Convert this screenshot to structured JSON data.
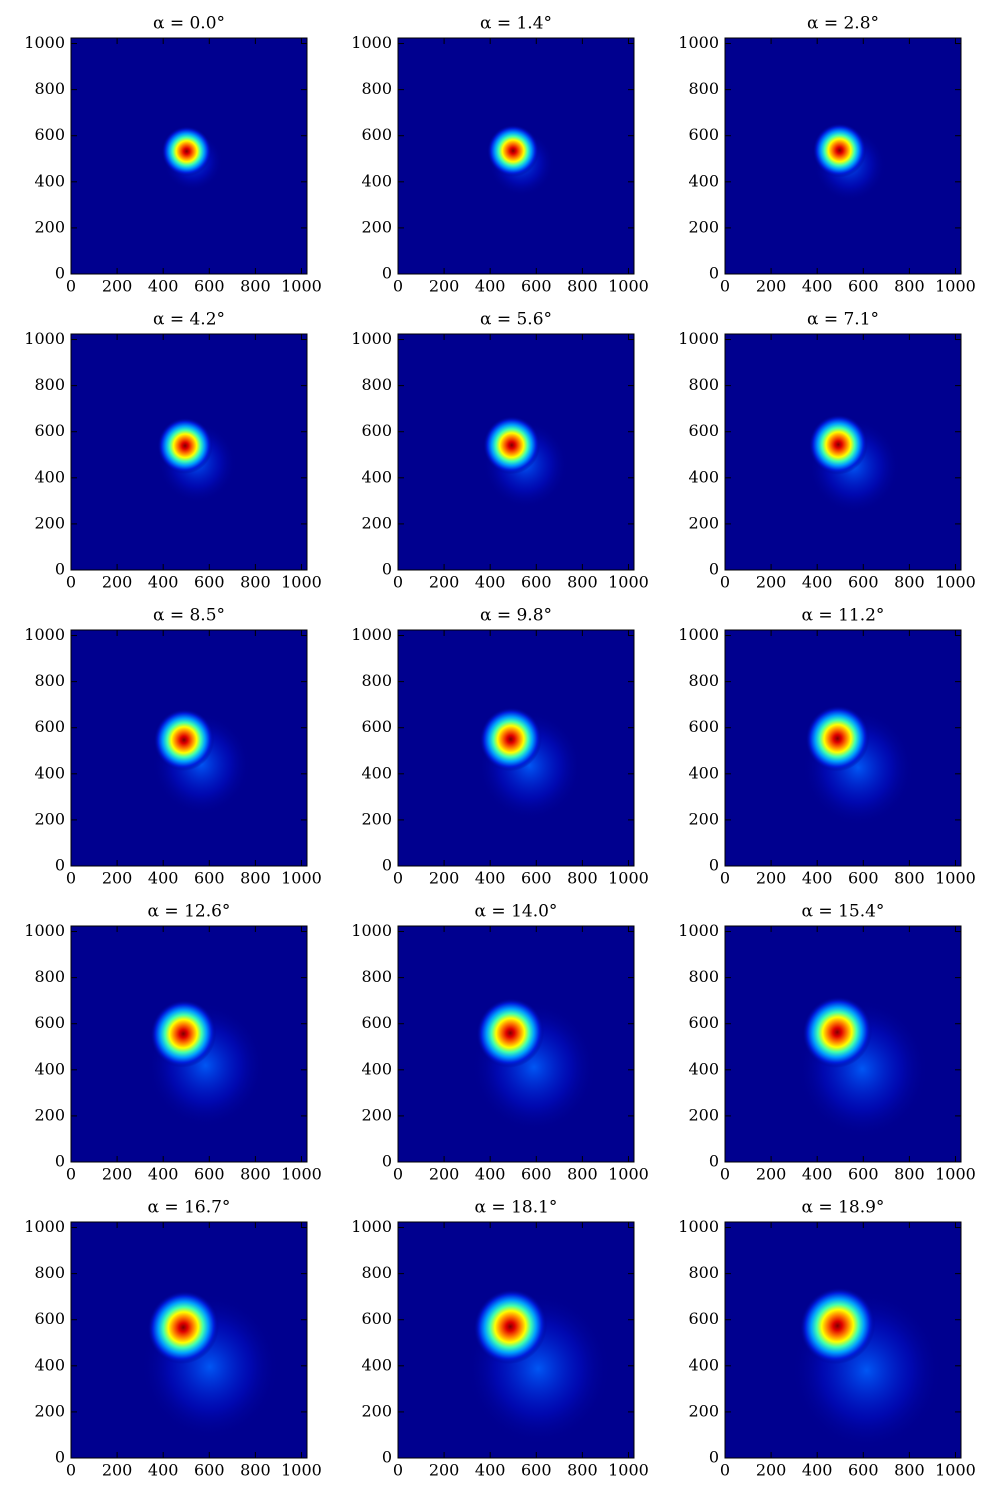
{
  "chart_data": [
    {
      "type": "heatmap",
      "title": "α = 0.0°",
      "colormap": "jet",
      "xlim": [
        0,
        1024
      ],
      "ylim": [
        0,
        1024
      ],
      "xticks": [
        0,
        200,
        400,
        600,
        800,
        1000
      ],
      "yticks": [
        0,
        200,
        400,
        600,
        800,
        1000
      ]
    },
    {
      "type": "heatmap",
      "title": "α = 1.4°",
      "colormap": "jet",
      "xlim": [
        0,
        1024
      ],
      "ylim": [
        0,
        1024
      ],
      "xticks": [
        0,
        200,
        400,
        600,
        800,
        1000
      ],
      "yticks": [
        0,
        200,
        400,
        600,
        800,
        1000
      ]
    },
    {
      "type": "heatmap",
      "title": "α = 2.8°",
      "colormap": "jet",
      "xlim": [
        0,
        1024
      ],
      "ylim": [
        0,
        1024
      ],
      "xticks": [
        0,
        200,
        400,
        600,
        800,
        1000
      ],
      "yticks": [
        0,
        200,
        400,
        600,
        800,
        1000
      ]
    },
    {
      "type": "heatmap",
      "title": "α = 4.2°",
      "colormap": "jet",
      "xlim": [
        0,
        1024
      ],
      "ylim": [
        0,
        1024
      ],
      "xticks": [
        0,
        200,
        400,
        600,
        800,
        1000
      ],
      "yticks": [
        0,
        200,
        400,
        600,
        800,
        1000
      ]
    },
    {
      "type": "heatmap",
      "title": "α = 5.6°",
      "colormap": "jet",
      "xlim": [
        0,
        1024
      ],
      "ylim": [
        0,
        1024
      ],
      "xticks": [
        0,
        200,
        400,
        600,
        800,
        1000
      ],
      "yticks": [
        0,
        200,
        400,
        600,
        800,
        1000
      ]
    },
    {
      "type": "heatmap",
      "title": "α = 7.1°",
      "colormap": "jet",
      "xlim": [
        0,
        1024
      ],
      "ylim": [
        0,
        1024
      ],
      "xticks": [
        0,
        200,
        400,
        600,
        800,
        1000
      ],
      "yticks": [
        0,
        200,
        400,
        600,
        800,
        1000
      ]
    },
    {
      "type": "heatmap",
      "title": "α = 8.5°",
      "colormap": "jet",
      "xlim": [
        0,
        1024
      ],
      "ylim": [
        0,
        1024
      ],
      "xticks": [
        0,
        200,
        400,
        600,
        800,
        1000
      ],
      "yticks": [
        0,
        200,
        400,
        600,
        800,
        1000
      ]
    },
    {
      "type": "heatmap",
      "title": "α = 9.8°",
      "colormap": "jet",
      "xlim": [
        0,
        1024
      ],
      "ylim": [
        0,
        1024
      ],
      "xticks": [
        0,
        200,
        400,
        600,
        800,
        1000
      ],
      "yticks": [
        0,
        200,
        400,
        600,
        800,
        1000
      ]
    },
    {
      "type": "heatmap",
      "title": "α = 11.2°",
      "colormap": "jet",
      "xlim": [
        0,
        1024
      ],
      "ylim": [
        0,
        1024
      ],
      "xticks": [
        0,
        200,
        400,
        600,
        800,
        1000
      ],
      "yticks": [
        0,
        200,
        400,
        600,
        800,
        1000
      ]
    },
    {
      "type": "heatmap",
      "title": "α = 12.6°",
      "colormap": "jet",
      "xlim": [
        0,
        1024
      ],
      "ylim": [
        0,
        1024
      ],
      "xticks": [
        0,
        200,
        400,
        600,
        800,
        1000
      ],
      "yticks": [
        0,
        200,
        400,
        600,
        800,
        1000
      ]
    },
    {
      "type": "heatmap",
      "title": "α = 14.0°",
      "colormap": "jet",
      "xlim": [
        0,
        1024
      ],
      "ylim": [
        0,
        1024
      ],
      "xticks": [
        0,
        200,
        400,
        600,
        800,
        1000
      ],
      "yticks": [
        0,
        200,
        400,
        600,
        800,
        1000
      ]
    },
    {
      "type": "heatmap",
      "title": "α = 15.4°",
      "colormap": "jet",
      "xlim": [
        0,
        1024
      ],
      "ylim": [
        0,
        1024
      ],
      "xticks": [
        0,
        200,
        400,
        600,
        800,
        1000
      ],
      "yticks": [
        0,
        200,
        400,
        600,
        800,
        1000
      ]
    },
    {
      "type": "heatmap",
      "title": "α = 16.7°",
      "colormap": "jet",
      "xlim": [
        0,
        1024
      ],
      "ylim": [
        0,
        1024
      ],
      "xticks": [
        0,
        200,
        400,
        600,
        800,
        1000
      ],
      "yticks": [
        0,
        200,
        400,
        600,
        800,
        1000
      ]
    },
    {
      "type": "heatmap",
      "title": "α = 18.1°",
      "colormap": "jet",
      "xlim": [
        0,
        1024
      ],
      "ylim": [
        0,
        1024
      ],
      "xticks": [
        0,
        200,
        400,
        600,
        800,
        1000
      ],
      "yticks": [
        0,
        200,
        400,
        600,
        800,
        1000
      ]
    },
    {
      "type": "heatmap",
      "title": "α = 18.9°",
      "colormap": "jet",
      "xlim": [
        0,
        1024
      ],
      "ylim": [
        0,
        1024
      ],
      "xticks": [
        0,
        200,
        400,
        600,
        800,
        1000
      ],
      "yticks": [
        0,
        200,
        400,
        600,
        800,
        1000
      ]
    }
  ]
}
